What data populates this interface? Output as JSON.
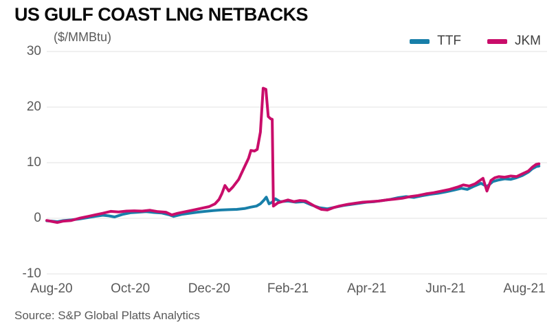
{
  "header": {
    "title": "US GULF COAST LNG NETBACKS",
    "unit": "($/MMBtu)"
  },
  "footer": {
    "source": "Source: S&P Global Platts Analytics"
  },
  "chart_data": {
    "type": "line",
    "title": "US GULF COAST LNG NETBACKS",
    "ylabel": "($/MMBtu)",
    "legend_position": "top-right",
    "grid": true,
    "ylim": [
      -10,
      30
    ],
    "y_axis": {
      "ticks": [
        30,
        20,
        10,
        0,
        -10
      ]
    },
    "x_axis": {
      "tick_labels": [
        "Aug-20",
        "Oct-20",
        "Dec-20",
        "Feb-21",
        "Apr-21",
        "Jun-21",
        "Aug-21"
      ],
      "tick_month_index": [
        0,
        2,
        4,
        6,
        8,
        10,
        12
      ]
    },
    "colors": {
      "ttf": "#187fa9",
      "jkm": "#c90d6a",
      "gridline": "#e0e0e0"
    },
    "series": [
      {
        "name": "TTF",
        "color": "#187fa9",
        "points": [
          [
            -0.12,
            -0.45
          ],
          [
            0,
            -0.5
          ],
          [
            0.15,
            -0.62
          ],
          [
            0.3,
            -0.42
          ],
          [
            0.5,
            -0.3
          ],
          [
            0.7,
            -0.12
          ],
          [
            0.9,
            0.1
          ],
          [
            1.1,
            0.35
          ],
          [
            1.3,
            0.55
          ],
          [
            1.45,
            0.45
          ],
          [
            1.6,
            0.25
          ],
          [
            1.8,
            0.7
          ],
          [
            2,
            1
          ],
          [
            2.2,
            1.1
          ],
          [
            2.4,
            1.2
          ],
          [
            2.6,
            1.05
          ],
          [
            2.8,
            0.95
          ],
          [
            3,
            0.6
          ],
          [
            3.1,
            0.35
          ],
          [
            3.3,
            0.7
          ],
          [
            3.5,
            0.9
          ],
          [
            3.7,
            1.1
          ],
          [
            3.9,
            1.25
          ],
          [
            4.1,
            1.4
          ],
          [
            4.3,
            1.5
          ],
          [
            4.5,
            1.55
          ],
          [
            4.7,
            1.6
          ],
          [
            4.9,
            1.75
          ],
          [
            5.05,
            2
          ],
          [
            5.2,
            2.2
          ],
          [
            5.3,
            2.6
          ],
          [
            5.38,
            3.2
          ],
          [
            5.45,
            3.8
          ],
          [
            5.52,
            2.6
          ],
          [
            5.6,
            2.9
          ],
          [
            5.68,
            3.5
          ],
          [
            5.8,
            3
          ],
          [
            6,
            3.1
          ],
          [
            6.2,
            2.9
          ],
          [
            6.4,
            3
          ],
          [
            6.6,
            2.4
          ],
          [
            6.8,
            1.9
          ],
          [
            7,
            1.7
          ],
          [
            7.2,
            2
          ],
          [
            7.4,
            2.3
          ],
          [
            7.6,
            2.5
          ],
          [
            7.8,
            2.7
          ],
          [
            8,
            2.9
          ],
          [
            8.2,
            3
          ],
          [
            8.4,
            3.2
          ],
          [
            8.6,
            3.4
          ],
          [
            8.8,
            3.7
          ],
          [
            9,
            3.9
          ],
          [
            9.2,
            3.75
          ],
          [
            9.4,
            4.05
          ],
          [
            9.6,
            4.3
          ],
          [
            9.8,
            4.5
          ],
          [
            10,
            4.75
          ],
          [
            10.2,
            5.05
          ],
          [
            10.4,
            5.4
          ],
          [
            10.55,
            5.2
          ],
          [
            10.7,
            5.7
          ],
          [
            10.9,
            6.3
          ],
          [
            11.05,
            5.7
          ],
          [
            11.2,
            6.6
          ],
          [
            11.35,
            6.9
          ],
          [
            11.5,
            7.1
          ],
          [
            11.65,
            7
          ],
          [
            11.8,
            7.3
          ],
          [
            11.95,
            7.7
          ],
          [
            12.1,
            8.3
          ],
          [
            12.2,
            8.9
          ],
          [
            12.3,
            9.3
          ],
          [
            12.37,
            9.4
          ]
        ]
      },
      {
        "name": "JKM",
        "color": "#c90d6a",
        "points": [
          [
            -0.12,
            -0.4
          ],
          [
            0,
            -0.55
          ],
          [
            0.15,
            -0.75
          ],
          [
            0.3,
            -0.5
          ],
          [
            0.5,
            -0.4
          ],
          [
            0.7,
            0
          ],
          [
            0.9,
            0.3
          ],
          [
            1.1,
            0.6
          ],
          [
            1.3,
            0.9
          ],
          [
            1.5,
            1.25
          ],
          [
            1.7,
            1.15
          ],
          [
            1.9,
            1.3
          ],
          [
            2.1,
            1.35
          ],
          [
            2.3,
            1.3
          ],
          [
            2.5,
            1.45
          ],
          [
            2.7,
            1.2
          ],
          [
            2.9,
            1.1
          ],
          [
            3.05,
            0.6
          ],
          [
            3.2,
            0.9
          ],
          [
            3.4,
            1.2
          ],
          [
            3.6,
            1.5
          ],
          [
            3.8,
            1.8
          ],
          [
            4,
            2.1
          ],
          [
            4.15,
            2.6
          ],
          [
            4.25,
            3.4
          ],
          [
            4.32,
            4.4
          ],
          [
            4.4,
            5.9
          ],
          [
            4.5,
            4.9
          ],
          [
            4.6,
            5.6
          ],
          [
            4.75,
            7
          ],
          [
            4.88,
            9
          ],
          [
            5,
            10.8
          ],
          [
            5.06,
            12.2
          ],
          [
            5.15,
            12.1
          ],
          [
            5.22,
            12.4
          ],
          [
            5.3,
            15.5
          ],
          [
            5.37,
            23.4
          ],
          [
            5.44,
            23.2
          ],
          [
            5.5,
            18.3
          ],
          [
            5.56,
            17.9
          ],
          [
            5.6,
            17.8
          ],
          [
            5.63,
            2.2
          ],
          [
            5.75,
            2.8
          ],
          [
            5.9,
            3.1
          ],
          [
            6,
            3.3
          ],
          [
            6.15,
            3
          ],
          [
            6.3,
            3.2
          ],
          [
            6.45,
            3.1
          ],
          [
            6.55,
            2.7
          ],
          [
            6.7,
            2.1
          ],
          [
            6.85,
            1.6
          ],
          [
            7,
            1.5
          ],
          [
            7.15,
            1.9
          ],
          [
            7.3,
            2.2
          ],
          [
            7.5,
            2.5
          ],
          [
            7.7,
            2.7
          ],
          [
            7.9,
            2.9
          ],
          [
            8.1,
            3
          ],
          [
            8.3,
            3.1
          ],
          [
            8.5,
            3.3
          ],
          [
            8.7,
            3.45
          ],
          [
            8.9,
            3.6
          ],
          [
            9.1,
            3.9
          ],
          [
            9.3,
            4.1
          ],
          [
            9.5,
            4.4
          ],
          [
            9.7,
            4.6
          ],
          [
            9.9,
            4.9
          ],
          [
            10.1,
            5.2
          ],
          [
            10.3,
            5.6
          ],
          [
            10.45,
            6
          ],
          [
            10.6,
            5.8
          ],
          [
            10.75,
            6.2
          ],
          [
            10.95,
            7.2
          ],
          [
            11.05,
            4.9
          ],
          [
            11.15,
            6.8
          ],
          [
            11.25,
            7.3
          ],
          [
            11.35,
            7.5
          ],
          [
            11.5,
            7.4
          ],
          [
            11.65,
            7.6
          ],
          [
            11.8,
            7.5
          ],
          [
            11.95,
            8
          ],
          [
            12.1,
            8.5
          ],
          [
            12.2,
            9.2
          ],
          [
            12.3,
            9.7
          ],
          [
            12.37,
            9.8
          ]
        ]
      }
    ]
  }
}
